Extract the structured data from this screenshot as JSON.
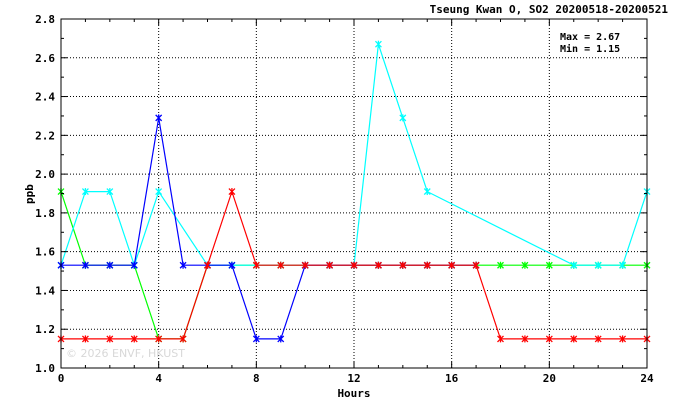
{
  "chart_data": {
    "type": "line",
    "title": "Tseung Kwan O, SO2 20200518-20200521",
    "xlabel": "Hours",
    "ylabel": "ppb",
    "xlim": [
      0,
      24
    ],
    "ylim": [
      1.0,
      2.8
    ],
    "x_ticks": [
      0,
      4,
      8,
      12,
      16,
      20,
      24
    ],
    "y_ticks": [
      1.0,
      1.2,
      1.4,
      1.6,
      1.8,
      2.0,
      2.2,
      2.4,
      2.6,
      2.8
    ],
    "grid": true,
    "marker": "asterisk",
    "annotations": {
      "max": "Max = 2.67",
      "min": "Min = 1.15"
    },
    "watermark": "© 2026 ENVF, HKUST",
    "series": [
      {
        "color": "#00ff00",
        "x": [
          0,
          1,
          2,
          3,
          4,
          5,
          6,
          7,
          8,
          9,
          10,
          11,
          12,
          13,
          14,
          15,
          16,
          17,
          18,
          19,
          20,
          21,
          22,
          23,
          24
        ],
        "values": [
          1.91,
          1.53,
          1.53,
          1.53,
          1.15,
          1.15,
          1.53,
          1.53,
          1.53,
          1.53,
          1.53,
          1.53,
          1.53,
          1.53,
          1.53,
          1.53,
          1.53,
          1.53,
          1.53,
          1.53,
          1.53,
          1.53,
          1.53,
          1.53,
          1.53
        ]
      },
      {
        "color": "#00ffff",
        "x": [
          0,
          1,
          2,
          3,
          4,
          6,
          7,
          8,
          9,
          10,
          11,
          12,
          13,
          14,
          15,
          21,
          22,
          23,
          24
        ],
        "values": [
          1.53,
          1.91,
          1.91,
          1.53,
          1.91,
          1.53,
          1.53,
          1.53,
          1.53,
          1.53,
          1.53,
          1.53,
          2.67,
          2.29,
          1.91,
          1.53,
          1.53,
          1.53,
          1.91
        ]
      },
      {
        "color": "#0000ff",
        "x": [
          0,
          1,
          2,
          3,
          4,
          5,
          6,
          7,
          8,
          9,
          10,
          11,
          12,
          13,
          14,
          15,
          16,
          17
        ],
        "values": [
          1.53,
          1.53,
          1.53,
          1.53,
          2.29,
          1.53,
          1.53,
          1.53,
          1.15,
          1.15,
          1.53,
          1.53,
          1.53,
          1.53,
          1.53,
          1.53,
          1.53,
          1.53
        ]
      },
      {
        "color": "#ff0000",
        "x": [
          0,
          1,
          2,
          3,
          4,
          5,
          6,
          7,
          8,
          9,
          10,
          11,
          12,
          13,
          14,
          15,
          16,
          17,
          18,
          19,
          20,
          21,
          22,
          23,
          24
        ],
        "values": [
          1.15,
          1.15,
          1.15,
          1.15,
          1.15,
          1.15,
          1.53,
          1.91,
          1.53,
          1.53,
          1.53,
          1.53,
          1.53,
          1.53,
          1.53,
          1.53,
          1.53,
          1.53,
          1.15,
          1.15,
          1.15,
          1.15,
          1.15,
          1.15,
          1.15
        ]
      }
    ]
  }
}
